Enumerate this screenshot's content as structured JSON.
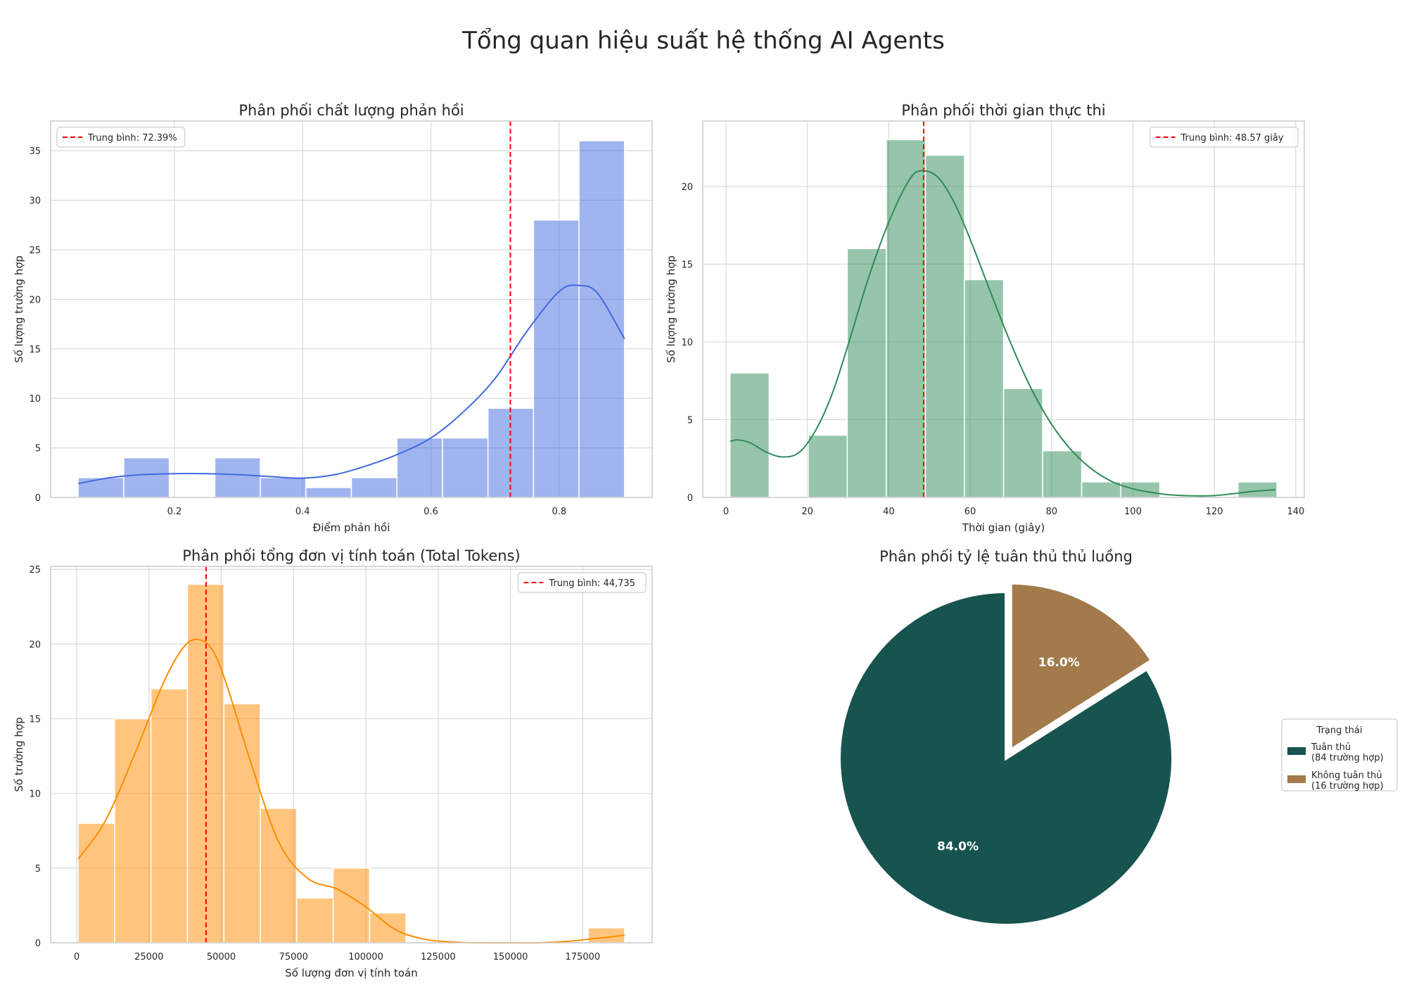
{
  "suptitle": "Tổng quan hiệu suất hệ thống AI Agents",
  "chart_data": [
    {
      "type": "bar",
      "subtype": "histogram_with_kde",
      "title": "Phân phối chất lượng phản hồi",
      "xlabel": "Điểm phản hồi",
      "ylabel": "Số lượng trường hợp",
      "color": "#4169e1",
      "bar_alpha": 0.5,
      "bins": [
        [
          0.05,
          0.121
        ],
        [
          0.121,
          0.192
        ],
        [
          0.192,
          0.263
        ],
        [
          0.263,
          0.334
        ],
        [
          0.334,
          0.405
        ],
        [
          0.405,
          0.476
        ],
        [
          0.476,
          0.547
        ],
        [
          0.547,
          0.618
        ],
        [
          0.618,
          0.689
        ],
        [
          0.689,
          0.76
        ],
        [
          0.76,
          0.831
        ],
        [
          0.831,
          0.902
        ]
      ],
      "values": [
        2,
        4,
        0,
        4,
        2,
        1,
        2,
        6,
        6,
        9,
        28,
        36
      ],
      "kde_x": [
        0.05,
        0.1,
        0.15,
        0.2,
        0.25,
        0.3,
        0.35,
        0.4,
        0.45,
        0.5,
        0.55,
        0.6,
        0.65,
        0.7,
        0.75,
        0.8,
        0.83,
        0.86,
        0.902
      ],
      "kde_y": [
        1.4,
        2.0,
        2.3,
        2.4,
        2.4,
        2.3,
        2.1,
        1.95,
        2.3,
        3.2,
        4.4,
        6.0,
        8.6,
        12.0,
        16.8,
        20.8,
        21.4,
        20.6,
        16.0
      ],
      "mean": 0.7239,
      "mean_label": "Trung bình: 72.39%",
      "legend_position": "upper left",
      "xlim": [
        0.007,
        0.945
      ],
      "ylim": [
        0,
        38
      ],
      "xticks": [
        0.2,
        0.4,
        0.6,
        0.8
      ],
      "xtick_labels": [
        "0.2",
        "0.4",
        "0.6",
        "0.8"
      ],
      "yticks": [
        0,
        5,
        10,
        15,
        20,
        25,
        30,
        35
      ],
      "ytick_labels": [
        "0",
        "5",
        "10",
        "15",
        "20",
        "25",
        "30",
        "35"
      ]
    },
    {
      "type": "bar",
      "subtype": "histogram_with_kde",
      "title": "Phân phối thời gian thực thi",
      "xlabel": "Thời gian (giây)",
      "ylabel": "Số lượng trường hợp",
      "color": "#2e8b57",
      "bar_alpha": 0.5,
      "bins": [
        [
          1,
          10.6
        ],
        [
          10.6,
          20.2
        ],
        [
          20.2,
          29.8
        ],
        [
          29.8,
          39.4
        ],
        [
          39.4,
          49.0
        ],
        [
          49.0,
          58.6
        ],
        [
          58.6,
          68.2
        ],
        [
          68.2,
          77.8
        ],
        [
          77.8,
          87.4
        ],
        [
          87.4,
          97.0
        ],
        [
          97.0,
          106.6
        ],
        [
          106.6,
          116.2
        ],
        [
          116.2,
          125.8
        ],
        [
          125.8,
          135.4
        ]
      ],
      "values": [
        8,
        0,
        4,
        16,
        23,
        22,
        14,
        7,
        3,
        1,
        1,
        0,
        0,
        1
      ],
      "kde_x": [
        1,
        3,
        6,
        10,
        14,
        18,
        22,
        26,
        30,
        35,
        40,
        45,
        48,
        52,
        56,
        60,
        65,
        70,
        75,
        80,
        85,
        90,
        95,
        100,
        105,
        110,
        115,
        120,
        125,
        130,
        135
      ],
      "kde_y": [
        3.6,
        3.7,
        3.5,
        2.9,
        2.6,
        2.9,
        4.3,
        6.6,
        9.8,
        14.1,
        17.7,
        20.4,
        21.0,
        20.6,
        19.0,
        16.6,
        13.2,
        9.9,
        7.0,
        4.7,
        3.0,
        1.8,
        1.0,
        0.55,
        0.3,
        0.15,
        0.1,
        0.12,
        0.25,
        0.4,
        0.5
      ],
      "mean": 48.57,
      "mean_label": "Trung bình: 48.57 giây",
      "legend_position": "upper right",
      "xlim": [
        -5.7,
        142.1
      ],
      "ylim": [
        0,
        24.2
      ],
      "xticks": [
        0,
        20,
        40,
        60,
        80,
        100,
        120,
        140
      ],
      "xtick_labels": [
        "0",
        "20",
        "40",
        "60",
        "80",
        "100",
        "120",
        "140"
      ],
      "yticks": [
        0,
        5,
        10,
        15,
        20
      ],
      "ytick_labels": [
        "0",
        "5",
        "10",
        "15",
        "20"
      ]
    },
    {
      "type": "bar",
      "subtype": "histogram_with_kde",
      "title": "Phân phối tổng đơn vị tính toán (Total Tokens)",
      "xlabel": "Số lượng đơn vị tính toán",
      "ylabel": "Số trường hợp",
      "color": "#ff8c00",
      "bar_alpha": 0.5,
      "bins": [
        [
          500,
          13100
        ],
        [
          13100,
          25700
        ],
        [
          25700,
          38300
        ],
        [
          38300,
          50900
        ],
        [
          50900,
          63500
        ],
        [
          63500,
          76100
        ],
        [
          76100,
          88700
        ],
        [
          88700,
          101300
        ],
        [
          101300,
          113900
        ],
        [
          113900,
          126500
        ],
        [
          126500,
          139100
        ],
        [
          139100,
          151700
        ],
        [
          151700,
          164300
        ],
        [
          164300,
          176900
        ],
        [
          176900,
          189500
        ]
      ],
      "values": [
        8,
        15,
        17,
        24,
        16,
        9,
        3,
        5,
        2,
        0,
        0,
        0,
        0,
        0,
        1
      ],
      "kde_x": [
        500,
        10000,
        20000,
        30000,
        37000,
        42000,
        47000,
        52000,
        60000,
        70000,
        80000,
        90000,
        100000,
        110000,
        120000,
        130000,
        140000,
        150000,
        160000,
        170000,
        180000,
        189500
      ],
      "kde_y": [
        5.6,
        8.2,
        12.6,
        17.4,
        19.8,
        20.3,
        19.6,
        17.2,
        12.2,
        6.7,
        4.3,
        3.6,
        2.4,
        0.9,
        0.25,
        0.05,
        0.0,
        0.0,
        0.0,
        0.1,
        0.3,
        0.5
      ],
      "mean": 44735,
      "mean_label": "Trung bình: 44,735",
      "legend_position": "upper right",
      "xlim": [
        -9000,
        199000
      ],
      "ylim": [
        0,
        25.2
      ],
      "xticks": [
        0,
        25000,
        50000,
        75000,
        100000,
        125000,
        150000,
        175000
      ],
      "xtick_labels": [
        "0",
        "25000",
        "50000",
        "75000",
        "100000",
        "125000",
        "150000",
        "175000"
      ],
      "yticks": [
        0,
        5,
        10,
        15,
        20,
        25
      ],
      "ytick_labels": [
        "0",
        "5",
        "10",
        "15",
        "20",
        "25"
      ]
    },
    {
      "type": "pie",
      "title": "Phân phối tỷ lệ tuân thủ thủ luồng",
      "categories": [
        "Tuân thủ",
        "Không tuân thủ"
      ],
      "values": [
        84,
        16
      ],
      "percent_labels": [
        "84.0%",
        "16.0%"
      ],
      "colors": [
        "#17544f",
        "#a27a4b"
      ],
      "explode": [
        0,
        1
      ],
      "legend_title": "Trạng thái",
      "legend_labels": [
        [
          "Tuân thủ",
          "(84 trường hợp)"
        ],
        [
          "Không tuân thủ",
          "(16 trường hợp)"
        ]
      ],
      "legend_position": "center right"
    }
  ]
}
